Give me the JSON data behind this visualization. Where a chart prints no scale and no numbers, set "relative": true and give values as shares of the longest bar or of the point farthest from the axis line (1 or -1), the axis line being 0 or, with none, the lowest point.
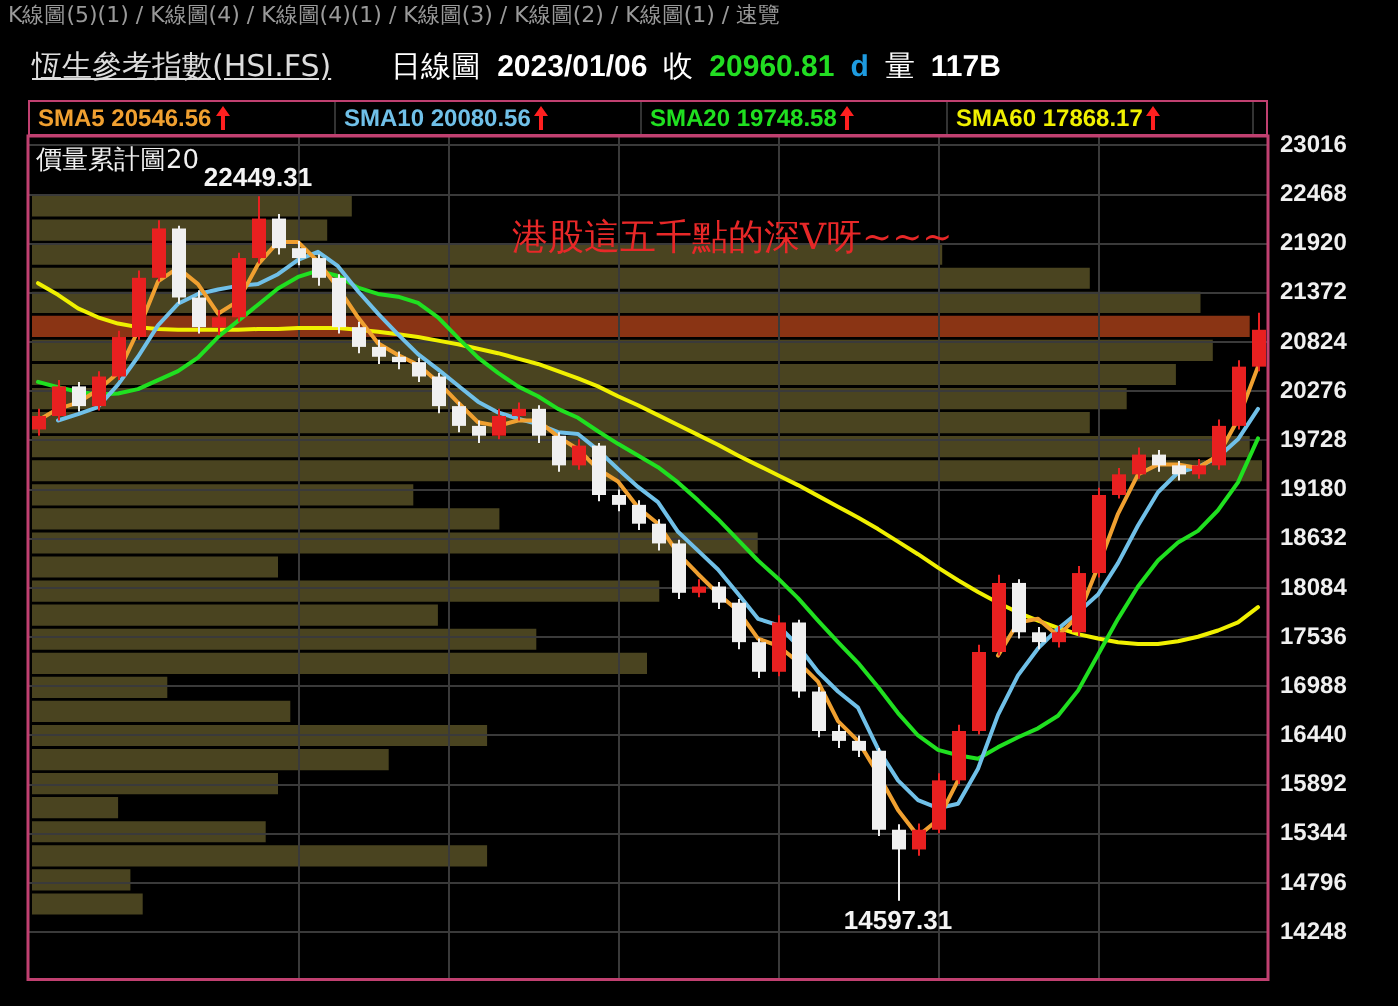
{
  "chart_data": [
    {
      "type": "bar",
      "title": "價量累計圖20",
      "orientation": "horizontal",
      "relative": true,
      "categories": [
        null,
        null,
        null,
        null,
        null,
        null,
        null,
        null,
        null,
        null,
        null,
        null,
        null,
        null,
        null,
        null,
        null,
        null,
        null,
        null,
        null,
        null,
        null,
        null,
        null,
        null,
        null,
        null,
        null,
        null
      ],
      "values": [
        0.26,
        0.24,
        0.74,
        0.86,
        0.95,
        0.99,
        0.96,
        0.93,
        0.89,
        0.86,
        0.99,
        1,
        0.31,
        0.38,
        0.59,
        0.2,
        0.51,
        0.33,
        0.41,
        0.5,
        0.11,
        0.21,
        0.37,
        0.29,
        0.2,
        0.07,
        0.19,
        0.37,
        0.08,
        0.09
      ],
      "colors": [
        "#4a4420",
        "#4a4420",
        "#4a4420",
        "#4a4420",
        "#4a4420",
        "#8a3414",
        "#4a4420",
        "#4a4420",
        "#4a4420",
        "#4a4420",
        "#4a4420",
        "#4a4420",
        "#4a4420",
        "#4a4420",
        "#4a4420",
        "#4a4420",
        "#4a4420",
        "#4a4420",
        "#4a4420",
        "#4a4420",
        "#4a4420",
        "#4a4420",
        "#4a4420",
        "#4a4420",
        "#4a4420",
        "#4a4420",
        "#4a4420",
        "#4a4420",
        "#4a4420",
        "#4a4420"
      ]
    },
    {
      "type": "candlestick",
      "title": "恆生參考指數(HSI.FS)",
      "annotations": [
        "K線圖(5)(1) / K線圖(4) / K線圖(4)(1) / K線圖(3) / K線圖(2) / K線圖(1) / 速覽",
        "日線圖",
        "2023/01/06",
        "收",
        "20960.81",
        "d",
        "量",
        "117B",
        "港股這五千點的深V呀~~~",
        {
          "text": "22449.31",
          "y": 22449.31
        },
        {
          "text": "14597.31",
          "y": 14597.31
        }
      ],
      "categories": [
        null,
        null,
        null,
        null,
        null,
        null,
        null,
        null,
        null,
        null,
        null,
        null,
        null,
        null,
        null,
        null,
        null,
        null,
        null,
        null,
        null,
        null,
        null,
        null,
        null,
        null,
        null,
        null,
        null,
        null,
        null,
        null,
        null,
        null,
        null,
        null,
        null,
        null,
        null,
        null,
        null,
        null,
        null,
        null,
        null,
        null,
        null,
        null,
        null,
        null,
        null,
        null,
        null,
        null,
        null,
        null,
        null,
        null,
        null,
        null,
        null,
        null
      ],
      "ohlc": [
        [
          19850,
          20080,
          19780,
          20000
        ],
        [
          20000,
          20400,
          19950,
          20330
        ],
        [
          20330,
          20380,
          20050,
          20110
        ],
        [
          20110,
          20500,
          20060,
          20440
        ],
        [
          20440,
          20950,
          20400,
          20880
        ],
        [
          20880,
          21620,
          20850,
          21540
        ],
        [
          21540,
          22180,
          21500,
          22090
        ],
        [
          22090,
          22120,
          21250,
          21320
        ],
        [
          21320,
          21400,
          20920,
          20990
        ],
        [
          20990,
          21180,
          20900,
          21100
        ],
        [
          21100,
          21820,
          21050,
          21760
        ],
        [
          21760,
          22449.31,
          21700,
          22200
        ],
        [
          22200,
          22250,
          21800,
          21870
        ],
        [
          21870,
          21950,
          21680,
          21760
        ],
        [
          21760,
          21800,
          21450,
          21540
        ],
        [
          21540,
          21580,
          20920,
          20990
        ],
        [
          20990,
          21050,
          20700,
          20770
        ],
        [
          20770,
          20850,
          20580,
          20660
        ],
        [
          20660,
          20720,
          20520,
          20600
        ],
        [
          20600,
          20650,
          20380,
          20440
        ],
        [
          20440,
          20480,
          20030,
          20110
        ],
        [
          20110,
          20160,
          19820,
          19890
        ],
        [
          19890,
          19950,
          19700,
          19780
        ],
        [
          19780,
          20080,
          19740,
          20000
        ],
        [
          20000,
          20150,
          19950,
          20080
        ],
        [
          20080,
          20120,
          19700,
          19780
        ],
        [
          19780,
          19820,
          19380,
          19450
        ],
        [
          19450,
          19740,
          19400,
          19670
        ],
        [
          19670,
          19700,
          19050,
          19120
        ],
        [
          19120,
          19180,
          18940,
          19010
        ],
        [
          19010,
          19060,
          18730,
          18800
        ],
        [
          18800,
          18850,
          18500,
          18580
        ],
        [
          18580,
          18620,
          17960,
          18030
        ],
        [
          18030,
          18180,
          17980,
          18100
        ],
        [
          18100,
          18150,
          17850,
          17920
        ],
        [
          17920,
          17960,
          17400,
          17480
        ],
        [
          17480,
          17520,
          17080,
          17150
        ],
        [
          17150,
          17780,
          17100,
          17700
        ],
        [
          17700,
          17730,
          16860,
          16930
        ],
        [
          16930,
          16980,
          16420,
          16490
        ],
        [
          16490,
          16560,
          16300,
          16380
        ],
        [
          16380,
          16440,
          16200,
          16270
        ],
        [
          16270,
          16300,
          15320,
          15390
        ],
        [
          15390,
          15450,
          14597.31,
          15170
        ],
        [
          15170,
          15460,
          15100,
          15390
        ],
        [
          15390,
          16020,
          15350,
          15940
        ],
        [
          15940,
          16560,
          15900,
          16490
        ],
        [
          16490,
          17450,
          16450,
          17370
        ],
        [
          17370,
          18230,
          17330,
          18140
        ],
        [
          18140,
          18180,
          17520,
          17590
        ],
        [
          17590,
          17650,
          17400,
          17480
        ],
        [
          17480,
          17660,
          17420,
          17590
        ],
        [
          17590,
          18330,
          17550,
          18250
        ],
        [
          18250,
          19200,
          18200,
          19120
        ],
        [
          19120,
          19420,
          19080,
          19350
        ],
        [
          19350,
          19650,
          19300,
          19570
        ],
        [
          19570,
          19620,
          19380,
          19450
        ],
        [
          19450,
          19500,
          19280,
          19350
        ],
        [
          19350,
          19520,
          19300,
          19450
        ],
        [
          19450,
          19960,
          19400,
          19890
        ],
        [
          19890,
          20620,
          19850,
          20550
        ],
        [
          20550,
          21150,
          20500,
          20960.81
        ]
      ],
      "colors": [
        "#e82020",
        "#e82020",
        "#f0f0f0",
        "#e82020",
        "#e82020",
        "#e82020",
        "#e82020",
        "#f0f0f0",
        "#f0f0f0",
        "#e82020",
        "#e82020",
        "#e82020",
        "#f0f0f0",
        "#f0f0f0",
        "#f0f0f0",
        "#f0f0f0",
        "#f0f0f0",
        "#f0f0f0",
        "#f0f0f0",
        "#f0f0f0",
        "#f0f0f0",
        "#f0f0f0",
        "#f0f0f0",
        "#e82020",
        "#e82020",
        "#f0f0f0",
        "#f0f0f0",
        "#e82020",
        "#f0f0f0",
        "#f0f0f0",
        "#f0f0f0",
        "#f0f0f0",
        "#f0f0f0",
        "#e82020",
        "#f0f0f0",
        "#f0f0f0",
        "#f0f0f0",
        "#e82020",
        "#f0f0f0",
        "#f0f0f0",
        "#f0f0f0",
        "#f0f0f0",
        "#f0f0f0",
        "#f0f0f0",
        "#e82020",
        "#e82020",
        "#e82020",
        "#e82020",
        "#e82020",
        "#f0f0f0",
        "#f0f0f0",
        "#e82020",
        "#e82020",
        "#e82020",
        "#e82020",
        "#e82020",
        "#f0f0f0",
        "#f0f0f0",
        "#e82020",
        "#e82020",
        "#e82020",
        "#e82020"
      ],
      "series": [
        {
          "name": "SMA5 20546.56",
          "type": "line",
          "color": "#f0a030",
          "values": [
            19950,
            20080,
            20150,
            20290,
            20480,
            20950,
            21500,
            21650,
            21470,
            21140,
            21280,
            21690,
            21940,
            21940,
            21720,
            21430,
            21100,
            20810,
            20680,
            20570,
            20380,
            20150,
            19930,
            19890,
            19950,
            19950,
            19770,
            19630,
            19410,
            19270,
            18980,
            18800,
            18470,
            18240,
            18020,
            17830,
            17520,
            17440,
            17260,
            17040,
            16600,
            16380,
            16010,
            15610,
            15320,
            15500,
            15940,
            null,
            17330,
            17700,
            17740,
            17550,
            17770,
            18320,
            18910,
            19350,
            19460,
            19460,
            19420,
            19560,
            19960,
            20550
          ]
        },
        {
          "name": "SMA10 20080.56",
          "type": "line",
          "color": "#70c0e8",
          "values": [
            null,
            19950,
            20020,
            20100,
            20350,
            20660,
            21010,
            21250,
            21360,
            21410,
            21450,
            21470,
            21580,
            21740,
            21830,
            21670,
            21390,
            21140,
            20910,
            20690,
            20520,
            20340,
            20160,
            20040,
            19970,
            19910,
            19820,
            19800,
            19620,
            19410,
            19210,
            19040,
            18710,
            18500,
            18290,
            18020,
            17740,
            17670,
            17440,
            17150,
            16930,
            16750,
            16290,
            15940,
            15720,
            15630,
            15680,
            16070,
            16670,
            17110,
            17410,
            17630,
            17810,
            18010,
            18360,
            18780,
            19150,
            19370,
            19430,
            19540,
            19740,
            20080
          ]
        },
        {
          "name": "SMA20 19748.58",
          "type": "line",
          "color": "#20e020",
          "values": [
            20380,
            20320,
            20270,
            20240,
            20250,
            20300,
            20400,
            20500,
            20650,
            20880,
            21060,
            21240,
            21420,
            21550,
            21620,
            21560,
            21430,
            21360,
            21330,
            21260,
            21100,
            20870,
            20650,
            20480,
            20330,
            20220,
            20080,
            19980,
            19830,
            19690,
            19560,
            19430,
            19260,
            19060,
            18850,
            18620,
            18390,
            18190,
            17970,
            17720,
            17480,
            17250,
            16980,
            16690,
            16440,
            16280,
            16220,
            16180,
            16310,
            16420,
            16520,
            16660,
            16940,
            17340,
            17740,
            18100,
            18390,
            18590,
            18720,
            18950,
            19260,
            19750
          ]
        },
        {
          "name": "SMA60 17868.17",
          "type": "line",
          "color": "#f0f000",
          "values": [
            21480,
            21350,
            21200,
            21100,
            21030,
            20990,
            20970,
            20960,
            20960,
            20960,
            20960,
            20970,
            20970,
            20980,
            20980,
            20980,
            20960,
            20940,
            20910,
            20880,
            20840,
            20800,
            20750,
            20700,
            20640,
            20580,
            20500,
            20420,
            20330,
            20220,
            20120,
            20010,
            19900,
            19790,
            19680,
            19560,
            19450,
            19340,
            19230,
            19110,
            18990,
            18870,
            18740,
            18600,
            18460,
            18310,
            18170,
            18040,
            17920,
            17810,
            17720,
            17640,
            17570,
            17520,
            17480,
            17460,
            17460,
            17490,
            17540,
            17610,
            17700,
            17870
          ]
        }
      ],
      "ylim": [
        13720,
        23120
      ],
      "yticks": [
        14248,
        14796,
        15344,
        15892,
        16440,
        16988,
        17536,
        18084,
        18632,
        19180,
        19728,
        20276,
        20824,
        21372,
        21920,
        22468,
        23016
      ],
      "grid": true
    }
  ]
}
